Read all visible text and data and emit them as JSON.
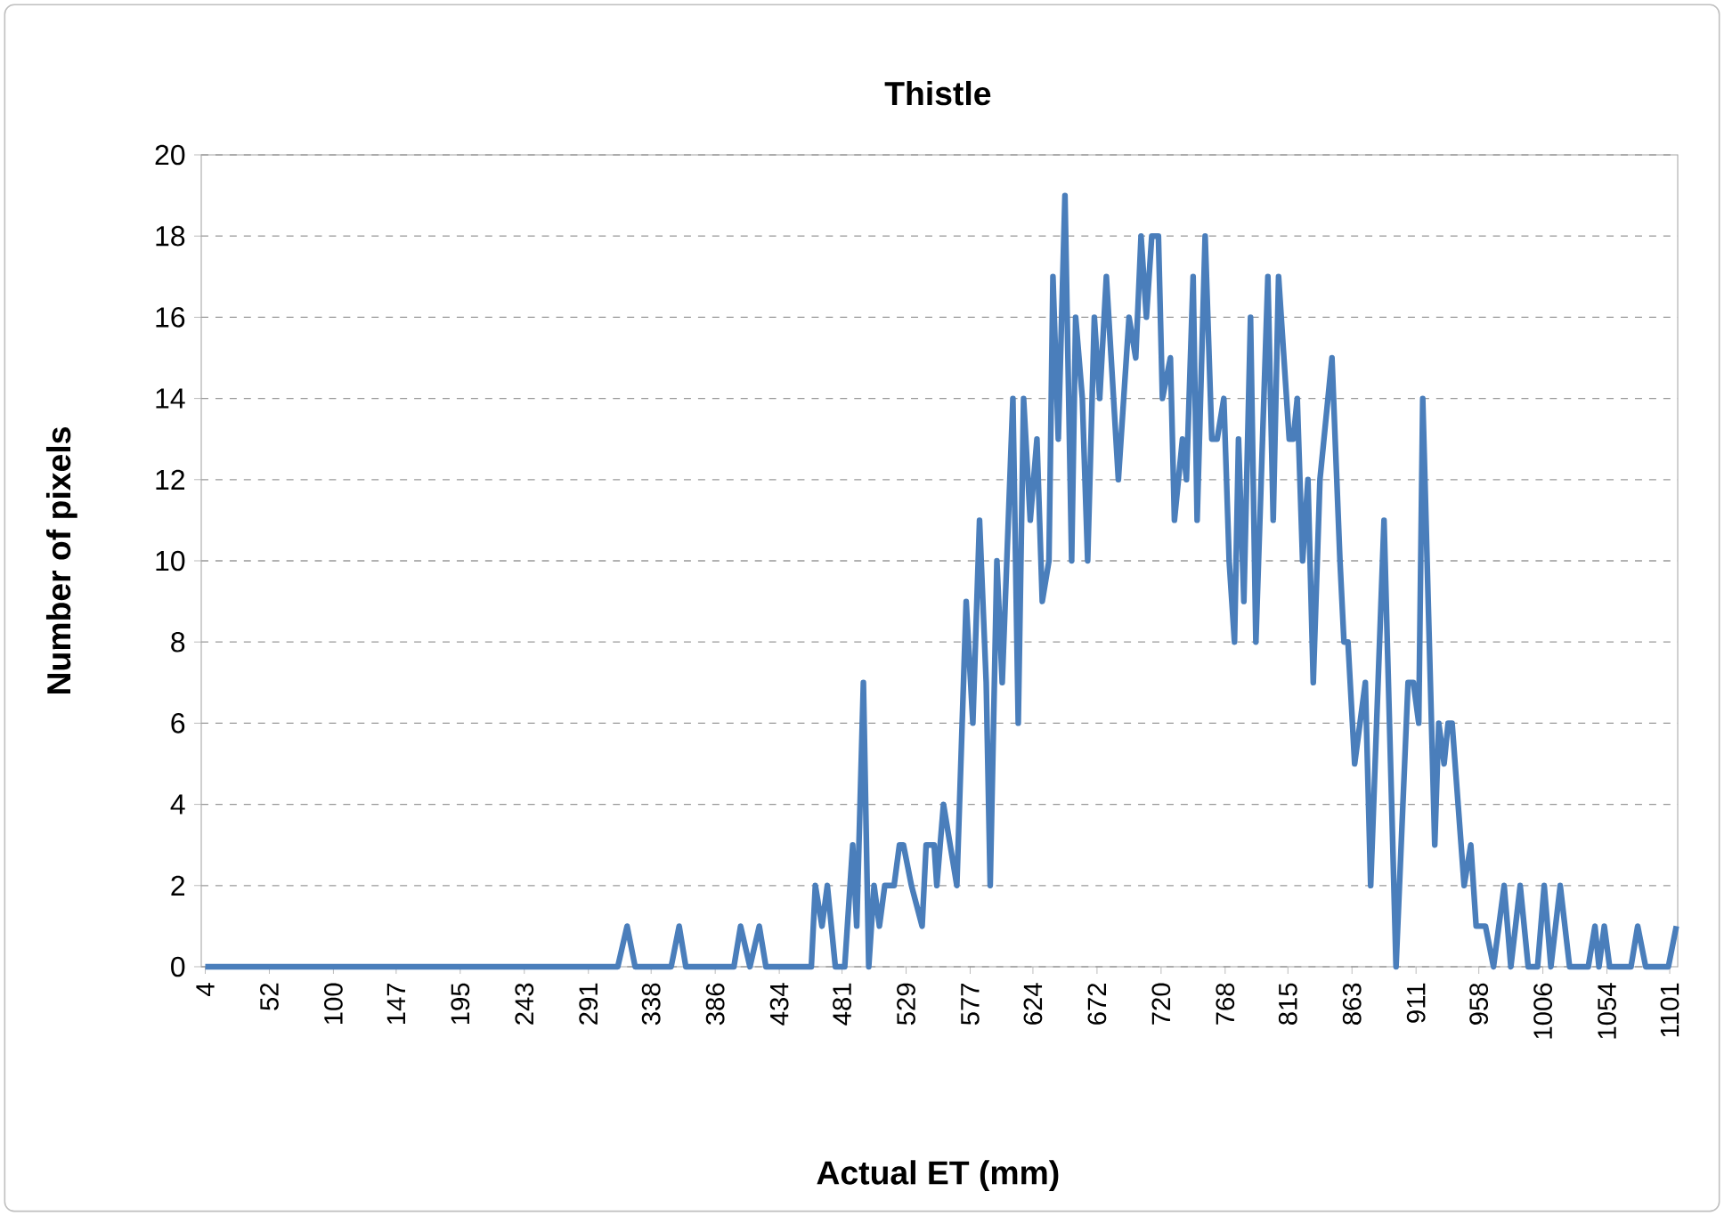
{
  "chart_data": {
    "type": "line",
    "title": "Thistle",
    "xlabel": "Actual ET (mm)",
    "ylabel": "Number of pixels",
    "xlim": [
      1,
      1107
    ],
    "ylim": [
      0,
      20
    ],
    "xticks": [
      4,
      52,
      100,
      147,
      195,
      243,
      291,
      338,
      386,
      434,
      481,
      529,
      577,
      624,
      672,
      720,
      768,
      815,
      863,
      911,
      958,
      1006,
      1054,
      1101
    ],
    "yticks": [
      0,
      2,
      4,
      6,
      8,
      10,
      12,
      14,
      16,
      18,
      20
    ],
    "grid": "y",
    "legend": false,
    "marker": "none",
    "line_style": "solid",
    "series": [
      {
        "color": "#4a7ebb",
        "x": [
          4,
          313,
          320,
          326,
          353,
          359,
          364,
          400,
          405,
          412,
          419,
          424,
          458,
          461,
          466,
          470,
          476,
          483,
          489,
          492,
          497,
          501,
          505,
          509,
          513,
          520,
          524,
          527,
          533,
          541,
          544,
          550,
          552,
          557,
          562,
          567,
          574,
          579,
          584,
          589,
          592,
          597,
          601,
          609,
          613,
          617,
          622,
          627,
          631,
          636,
          639,
          643,
          648,
          653,
          656,
          661,
          665,
          670,
          674,
          679,
          688,
          696,
          701,
          705,
          709,
          713,
          718,
          721,
          727,
          730,
          736,
          739,
          744,
          747,
          753,
          758,
          762,
          767,
          771,
          775,
          778,
          782,
          787,
          791,
          796,
          800,
          804,
          808,
          816,
          819,
          822,
          826,
          830,
          834,
          839,
          848,
          854,
          857,
          860,
          865,
          873,
          877,
          887,
          896,
          905,
          909,
          913,
          916,
          925,
          928,
          932,
          935,
          938,
          947,
          952,
          956,
          963,
          969,
          977,
          982,
          989,
          995,
          1002,
          1007,
          1012,
          1019,
          1026,
          1040,
          1045,
          1048,
          1052,
          1056,
          1072,
          1077,
          1083,
          1100,
          1106
        ],
        "values": [
          0,
          0,
          1,
          0,
          0,
          1,
          0,
          0,
          1,
          0,
          1,
          0,
          0,
          2,
          1,
          2,
          0,
          0,
          3,
          1,
          7,
          0,
          2,
          1,
          2,
          2,
          3,
          3,
          2,
          1,
          3,
          3,
          2,
          4,
          3,
          2,
          9,
          6,
          11,
          7,
          2,
          10,
          7,
          14,
          6,
          14,
          11,
          13,
          9,
          10,
          17,
          13,
          19,
          10,
          16,
          14,
          10,
          16,
          14,
          17,
          12,
          16,
          15,
          18,
          16,
          18,
          18,
          14,
          15,
          11,
          13,
          12,
          17,
          11,
          18,
          13,
          13,
          14,
          10,
          8,
          13,
          9,
          16,
          8,
          13,
          17,
          11,
          17,
          13,
          13,
          14,
          10,
          12,
          7,
          12,
          15,
          10,
          8,
          8,
          5,
          7,
          2,
          11,
          0,
          7,
          7,
          6,
          14,
          3,
          6,
          5,
          6,
          6,
          2,
          3,
          1,
          1,
          0,
          2,
          0,
          2,
          0,
          0,
          2,
          0,
          2,
          0,
          0,
          1,
          0,
          1,
          0,
          0,
          1,
          0,
          0,
          1
        ]
      }
    ]
  }
}
